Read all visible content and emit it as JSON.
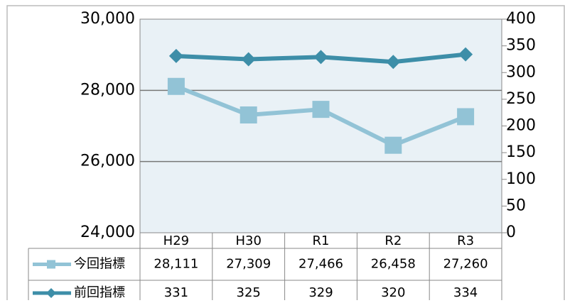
{
  "chart_data": {
    "type": "line",
    "categories": [
      "H29",
      "H30",
      "R1",
      "R2",
      "R3"
    ],
    "series": [
      {
        "name": "今回指標",
        "color": "#92c3d6",
        "values": [
          28111,
          27309,
          27466,
          26458,
          27260
        ],
        "value_labels": [
          "28,111",
          "27,309",
          "27,466",
          "26,458",
          "27,260"
        ]
      },
      {
        "name": "前回指標",
        "color": "#3d8ea8",
        "axis": "y2",
        "values": [
          331,
          325,
          329,
          320,
          334
        ]
      }
    ],
    "ylim": [
      24000,
      30000
    ],
    "yticks": [
      {
        "value": 24000,
        "label": "24,000"
      },
      {
        "value": 26000,
        "label": "26,000"
      },
      {
        "value": 28000,
        "label": "28,000"
      },
      {
        "value": 30000,
        "label": "30,000"
      }
    ],
    "y2lim": [
      0,
      400
    ],
    "y2ticks": [
      0,
      50,
      100,
      150,
      200,
      250,
      300,
      350,
      400
    ],
    "grid": true
  }
}
